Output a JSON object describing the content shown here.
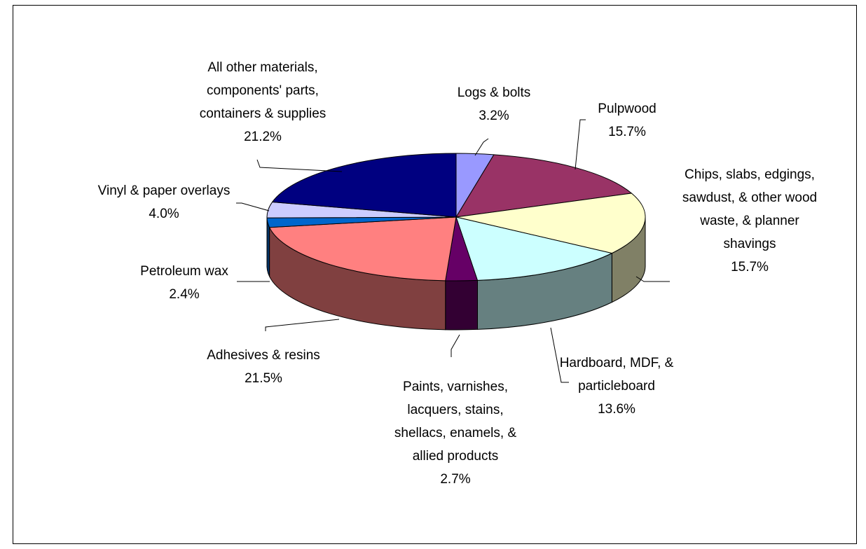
{
  "chart_data": {
    "type": "pie",
    "title": "",
    "style": "3d-exploded-none",
    "slices": [
      {
        "label": "Logs & bolts",
        "value": 3.2,
        "value_label": "3.2%",
        "color": "#9999ff"
      },
      {
        "label": "Pulpwood",
        "value": 15.7,
        "value_label": "15.7%",
        "color": "#993366"
      },
      {
        "label": "Chips, slabs, edgings, sawdust, & other wood waste, & planner shavings",
        "value": 15.7,
        "value_label": "15.7%",
        "color": "#ffffcc"
      },
      {
        "label": "Hardboard, MDF, & particleboard",
        "value": 13.6,
        "value_label": "13.6%",
        "color": "#ccffff"
      },
      {
        "label": "Paints, varnishes, lacquers, stains, shellacs, enamels, & allied products",
        "value": 2.7,
        "value_label": "2.7%",
        "color": "#660066"
      },
      {
        "label": "Adhesives & resins",
        "value": 21.5,
        "value_label": "21.5%",
        "color": "#ff8080"
      },
      {
        "label": "Petroleum wax",
        "value": 2.4,
        "value_label": "2.4%",
        "color": "#0066cc"
      },
      {
        "label": "Vinyl & paper overlays",
        "value": 4.0,
        "value_label": "4.0%",
        "color": "#ccccff"
      },
      {
        "label": "All other materials, components' parts, containers & supplies",
        "value": 21.2,
        "value_label": "21.2%",
        "color": "#000080"
      }
    ]
  }
}
